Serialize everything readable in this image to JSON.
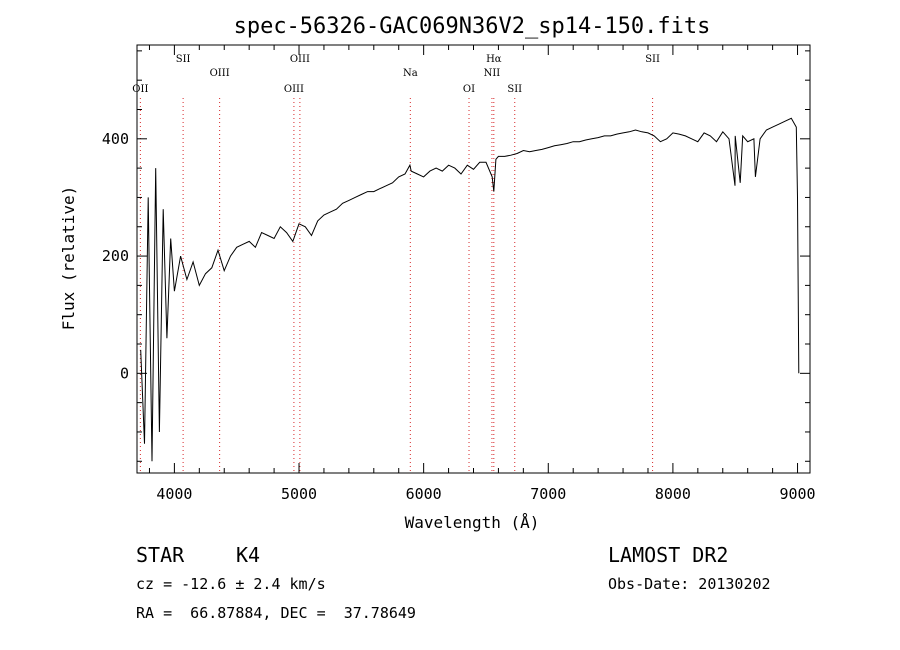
{
  "chart_data": {
    "type": "line",
    "title": "spec-56326-GAC069N36V2_sp14-150.fits",
    "xlabel": "Wavelength (Å)",
    "ylabel": "Flux (relative)",
    "xlim": [
      3700,
      9100
    ],
    "ylim": [
      -170,
      560
    ],
    "x_ticks": [
      4000,
      5000,
      6000,
      7000,
      8000,
      9000
    ],
    "y_ticks": [
      0,
      200,
      400
    ],
    "grid": false,
    "line_color": "#000000",
    "marker_color": "#d62728",
    "series": [
      {
        "x": [
          3730,
          3760,
          3790,
          3820,
          3850,
          3880,
          3910,
          3940,
          3970,
          4000,
          4050,
          4100,
          4150,
          4200,
          4250,
          4300,
          4350,
          4400,
          4450,
          4500,
          4550,
          4600,
          4650,
          4700,
          4750,
          4800,
          4850,
          4900,
          4950,
          5000,
          5050,
          5100,
          5150,
          5200,
          5250,
          5300,
          5350,
          5400,
          5450,
          5500,
          5550,
          5600,
          5650,
          5700,
          5750,
          5800,
          5850,
          5890,
          5900,
          5950,
          6000,
          6050,
          6100,
          6150,
          6200,
          6250,
          6300,
          6350,
          6400,
          6450,
          6500,
          6550,
          6563,
          6580,
          6600,
          6650,
          6700,
          6750,
          6800,
          6850,
          6900,
          6950,
          7000,
          7050,
          7100,
          7150,
          7200,
          7250,
          7300,
          7350,
          7400,
          7450,
          7500,
          7550,
          7600,
          7650,
          7700,
          7750,
          7800,
          7850,
          7900,
          7950,
          8000,
          8050,
          8100,
          8150,
          8200,
          8250,
          8300,
          8350,
          8400,
          8450,
          8498,
          8500,
          8540,
          8560,
          8600,
          8650,
          8662,
          8700,
          8750,
          8800,
          8850,
          8900,
          8950,
          8990,
          9000,
          9010
        ],
        "y": [
          40,
          -120,
          300,
          -150,
          350,
          -100,
          280,
          60,
          230,
          140,
          200,
          160,
          190,
          150,
          170,
          180,
          210,
          175,
          200,
          215,
          220,
          225,
          215,
          240,
          235,
          230,
          250,
          240,
          225,
          255,
          250,
          235,
          260,
          270,
          275,
          280,
          290,
          295,
          300,
          305,
          310,
          310,
          315,
          320,
          325,
          335,
          340,
          355,
          345,
          340,
          335,
          345,
          350,
          345,
          355,
          350,
          340,
          355,
          348,
          360,
          360,
          335,
          310,
          365,
          370,
          370,
          372,
          375,
          380,
          378,
          380,
          382,
          385,
          388,
          390,
          392,
          395,
          395,
          398,
          400,
          402,
          405,
          405,
          408,
          410,
          412,
          415,
          412,
          410,
          405,
          395,
          400,
          410,
          408,
          405,
          400,
          395,
          410,
          405,
          395,
          412,
          400,
          320,
          405,
          325,
          405,
          395,
          400,
          335,
          400,
          415,
          420,
          425,
          430,
          435,
          420,
          300,
          0
        ]
      }
    ],
    "lines": [
      {
        "label": "OII",
        "x": 3727
      },
      {
        "label": "SII",
        "x": 4070
      },
      {
        "label": "OIII",
        "x": 4363
      },
      {
        "label": "OIII",
        "x": 4959
      },
      {
        "label": "OIII",
        "x": 5007
      },
      {
        "label": "Na",
        "x": 5893
      },
      {
        "label": "OI",
        "x": 6364
      },
      {
        "label": "Hα",
        "x": 6563
      },
      {
        "label": "NII",
        "x": 6548
      },
      {
        "label": "SII",
        "x": 6731
      },
      {
        "label": "SII",
        "x": 7837
      }
    ]
  },
  "info": {
    "class": "STAR",
    "subclass": "K4",
    "survey": "LAMOST DR2",
    "cz": "cz = -12.6 ± 2.4 km/s",
    "obs_date": "Obs-Date: 20130202",
    "radec": "RA =  66.87884, DEC =  37.78649"
  }
}
